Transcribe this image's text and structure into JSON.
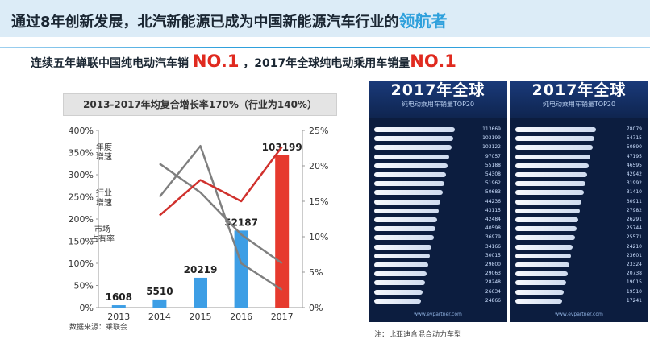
{
  "header": {
    "title_main": "通过8年创新发展，北汽新能源已成为中国新能源汽车行业的",
    "title_highlight": "领航者"
  },
  "subtitle": {
    "part1": "连续五年蝉联中国纯电动汽车销",
    "no1_a": "NO.1",
    "part2": "，2017年全球纯电动乘用车销量",
    "no1_b": "NO.1"
  },
  "chart_data": {
    "type": "bar",
    "title": "2013-2017年均复合增长率170%（行业为140%）",
    "categories": [
      "2013",
      "2014",
      "2015",
      "2016",
      "2017"
    ],
    "bar_series": {
      "values": [
        1608,
        5510,
        20219,
        52187,
        103199
      ],
      "bar_colors": [
        "#3d9ee5",
        "#3d9ee5",
        "#3d9ee5",
        "#3d9ee5",
        "#e63a2e"
      ]
    },
    "left_axis": {
      "ticks": [
        "0%",
        "50%",
        "100%",
        "150%",
        "200%",
        "250%",
        "300%",
        "350%",
        "400%"
      ],
      "range": [
        0,
        400
      ]
    },
    "right_axis": {
      "ticks": [
        "0%",
        "5%",
        "10%",
        "15%",
        "20%",
        "25%"
      ],
      "range": [
        0,
        25
      ]
    },
    "line_series": [
      {
        "name": "年度增速",
        "axis": "left",
        "color": "#7f7f7f",
        "values": [
          null,
          325,
          260,
          165,
          100
        ]
      },
      {
        "name": "行业增速",
        "axis": "left",
        "color": "#7f7f7f",
        "values": [
          null,
          250,
          365,
          100,
          40
        ]
      },
      {
        "name": "市场占有率",
        "axis": "right",
        "color": "#d0312d",
        "values": [
          null,
          13,
          18,
          15,
          22.7
        ]
      }
    ],
    "line_label_parts": [
      [
        "年度",
        "增速"
      ],
      [
        "行业",
        "增速"
      ],
      [
        "市场",
        "占有率"
      ]
    ],
    "source": "数据来源：乘联会",
    "legend": "none",
    "grid": false
  },
  "ranking": {
    "title": "2017年全球",
    "subtitle": "纯电动乘用车销量TOP20",
    "site": "www.evpartner.com",
    "panel_left_values": [
      "113669",
      "103199",
      "103122",
      "97057",
      "55188",
      "54308",
      "51962",
      "50683",
      "44236",
      "43115",
      "42484",
      "40598",
      "36979",
      "34166",
      "30015",
      "29800",
      "29063",
      "28248",
      "26634",
      "24866"
    ],
    "panel_right_values": [
      "78079",
      "54715",
      "50890",
      "47195",
      "46595",
      "42942",
      "31992",
      "31410",
      "30911",
      "27982",
      "26291",
      "25744",
      "25571",
      "24210",
      "23601",
      "23324",
      "20738",
      "19015",
      "19510",
      "17241"
    ]
  },
  "footnote": "注：比亚迪含混合动力车型"
}
